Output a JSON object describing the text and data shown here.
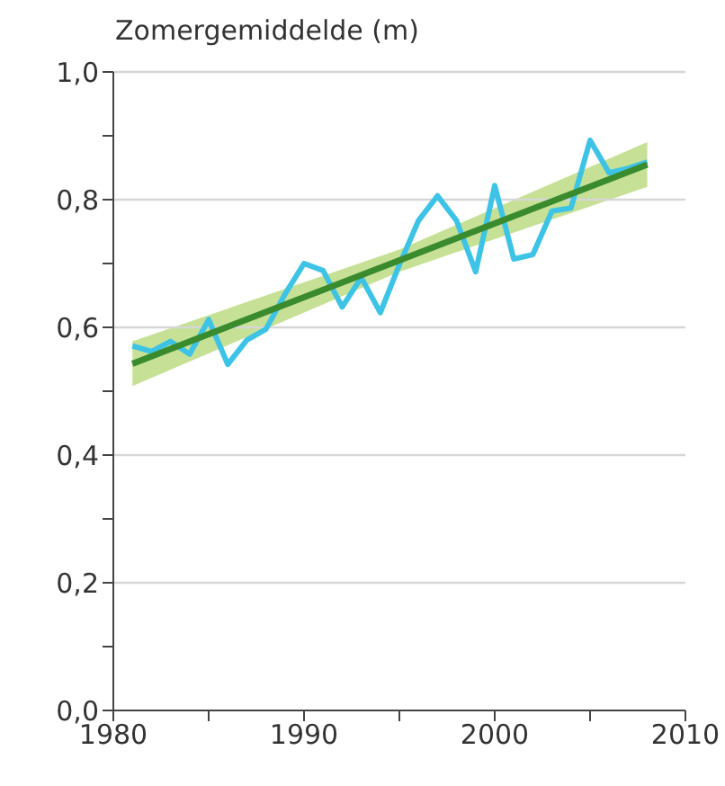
{
  "chart_data": {
    "type": "line",
    "ylabel": "Zomergemiddelde (m)",
    "series": [
      {
        "color": "#3dc3e6",
        "x": [
          1981,
          1982,
          1983,
          1984,
          1985,
          1986,
          1987,
          1988,
          1989,
          1990,
          1991,
          1992,
          1993,
          1994,
          1995,
          1996,
          1997,
          1998,
          1999,
          2000,
          2001,
          2002,
          2003,
          2004,
          2005,
          2006,
          2007,
          2008
        ],
        "values": [
          0.571,
          0.562,
          0.578,
          0.558,
          0.612,
          0.542,
          0.58,
          0.597,
          0.652,
          0.7,
          0.689,
          0.632,
          0.678,
          0.623,
          0.698,
          0.767,
          0.806,
          0.767,
          0.687,
          0.822,
          0.707,
          0.714,
          0.782,
          0.787,
          0.893,
          0.842,
          0.849,
          0.859
        ]
      },
      {
        "type": "line",
        "color": "#3a8a2e",
        "x": [
          1981,
          1995,
          2008
        ],
        "values": [
          0.543,
          0.705,
          0.855
        ],
        "lower": [
          0.508,
          0.687,
          0.82
        ],
        "upper": [
          0.578,
          0.722,
          0.89
        ]
      }
    ],
    "xlim": [
      1980,
      2010
    ],
    "xticks": [
      1980,
      {
        "value": 1985,
        "label": null
      },
      1990,
      {
        "value": 1995,
        "label": null
      },
      2000,
      {
        "value": 2005,
        "label": null
      },
      2010
    ],
    "ylim": [
      0,
      1
    ],
    "yticks": [
      {
        "value": 0,
        "label": "0,0"
      },
      {
        "value": 0.1,
        "label": null
      },
      {
        "value": 0.2,
        "label": "0,2"
      },
      {
        "value": 0.3,
        "label": null
      },
      {
        "value": 0.4,
        "label": "0,4"
      },
      {
        "value": 0.5,
        "label": null
      },
      {
        "value": 0.6,
        "label": "0,6"
      },
      {
        "value": 0.7,
        "label": null
      },
      {
        "value": 0.8,
        "label": "0,8"
      },
      {
        "value": 0.9,
        "label": null
      },
      {
        "value": 1,
        "label": "1,0"
      }
    ],
    "grid": "y",
    "line_style": "solid",
    "marker": "none"
  }
}
